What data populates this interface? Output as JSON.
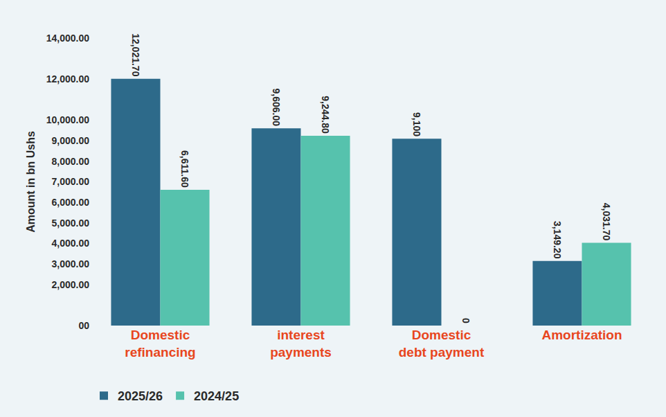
{
  "chart_data": {
    "type": "bar",
    "y_label": "Amount in bn Ushs",
    "categories": [
      "Domestic refinancing",
      "interest payments",
      "Domestic debt payment",
      "Amortization"
    ],
    "series": [
      {
        "name": "2025/26",
        "color": "#2d6a8a",
        "values": [
          12021.7,
          9606.0,
          9100,
          3149.2
        ],
        "value_labels": [
          "12,021.70",
          "9,606.00",
          "9,100",
          "3,149.20"
        ]
      },
      {
        "name": "2024/25",
        "color": "#56c2ad",
        "values": [
          6611.6,
          9244.8,
          0,
          4031.7
        ],
        "value_labels": [
          "6,611.60",
          "9,244.80",
          "0",
          "4,031.70"
        ]
      }
    ],
    "ylim": [
      0,
      14000
    ],
    "yticks": [
      {
        "value": 0,
        "label": "00"
      },
      {
        "value": 2000,
        "label": "2,000.00"
      },
      {
        "value": 3000,
        "label": "3,000.00"
      },
      {
        "value": 4000,
        "label": "4,000.00"
      },
      {
        "value": 5000,
        "label": "5,000.00"
      },
      {
        "value": 6000,
        "label": "6,000.00"
      },
      {
        "value": 7000,
        "label": "7,000.00"
      },
      {
        "value": 8000,
        "label": "8,000.00"
      },
      {
        "value": 9000,
        "label": "9,000.00"
      },
      {
        "value": 10000,
        "label": "10,000.00"
      },
      {
        "value": 12000,
        "label": "12,000.00"
      },
      {
        "value": 14000,
        "label": "14,000.00"
      }
    ],
    "grid": false,
    "data_labels": true,
    "legend": "bottom left"
  }
}
